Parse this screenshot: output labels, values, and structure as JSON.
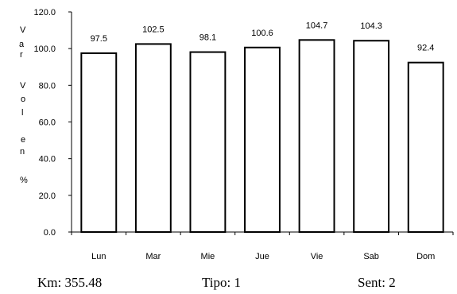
{
  "chart_data": {
    "type": "bar",
    "categories": [
      "Lun",
      "Mar",
      "Mie",
      "Jue",
      "Vie",
      "Sab",
      "Dom"
    ],
    "values": [
      97.5,
      102.5,
      98.1,
      100.6,
      104.7,
      104.3,
      92.4
    ],
    "value_labels": [
      "97.5",
      "102.5",
      "98.1",
      "100.6",
      "104.7",
      "104.3",
      "92.4"
    ],
    "title": "",
    "xlabel": "",
    "ylabel": "Var Vol en %",
    "ylabel_lines": [
      "V",
      "a",
      "r",
      "V",
      "o",
      "l",
      "e",
      "n",
      "%"
    ],
    "ylim": [
      0,
      120
    ],
    "yticks": [
      "0.0",
      "20.0",
      "40.0",
      "60.0",
      "80.0",
      "100.0",
      "120.0"
    ],
    "grid": false,
    "legend": "none",
    "bar_fill": "#ffffff",
    "bar_stroke": "#000000"
  },
  "footer": {
    "km": "Km: 355.48",
    "tipo": "Tipo: 1",
    "sent": "Sent: 2"
  }
}
